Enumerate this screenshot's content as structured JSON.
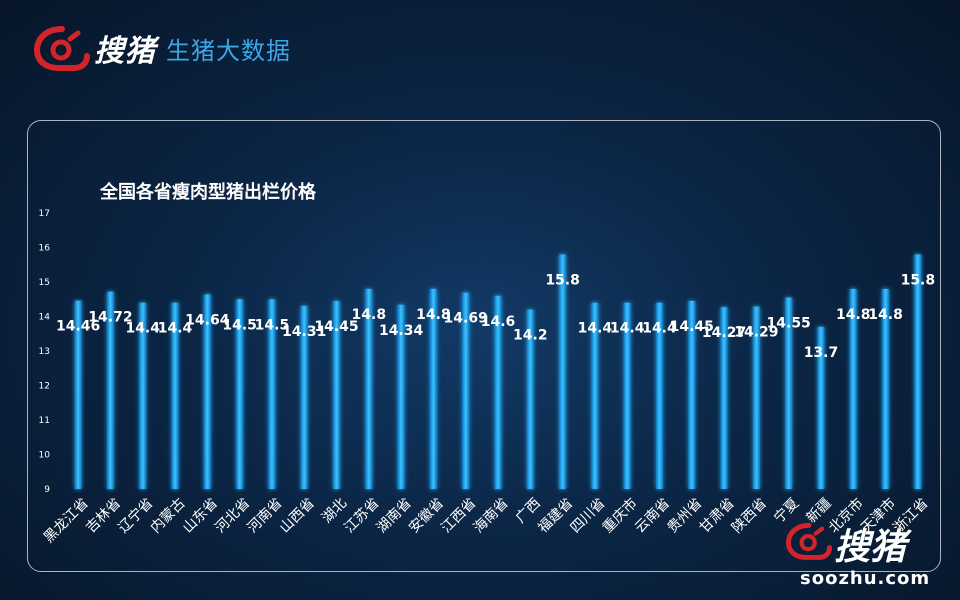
{
  "brand": {
    "name": "搜猪",
    "subtitle": "生猪大数据",
    "logo_icon": "pig-logo-icon"
  },
  "watermark": {
    "name": "搜猪",
    "url": "soozhu.com"
  },
  "colors": {
    "bar": "#1aa8f0",
    "bar_glow": "#0a6fb8",
    "background": "#0b2544",
    "text": "#ffffff"
  },
  "chart_data": {
    "type": "bar",
    "title": "全国各省瘦肉型猪出栏价格",
    "xlabel": "",
    "ylabel": "",
    "ylim": [
      9,
      17
    ],
    "yticks": [
      9,
      10,
      11,
      12,
      13,
      14,
      15,
      16,
      17
    ],
    "grid": false,
    "categories": [
      "黑龙江省",
      "吉林省",
      "辽宁省",
      "内蒙古",
      "山东省",
      "河北省",
      "河南省",
      "山西省",
      "湖北",
      "江苏省",
      "湖南省",
      "安徽省",
      "江西省",
      "海南省",
      "广西",
      "福建省",
      "四川省",
      "重庆市",
      "云南省",
      "贵州省",
      "甘肃省",
      "陕西省",
      "宁夏",
      "新疆",
      "北京市",
      "天津市",
      "浙江省"
    ],
    "values": [
      14.46,
      14.72,
      14.4,
      14.4,
      14.64,
      14.5,
      14.5,
      14.31,
      14.45,
      14.8,
      14.34,
      14.8,
      14.69,
      14.6,
      14.2,
      15.8,
      14.4,
      14.4,
      14.4,
      14.45,
      14.27,
      14.29,
      14.55,
      13.7,
      14.8,
      14.8,
      15.8
    ],
    "labels": [
      "14.46",
      "14.72",
      "14.4",
      "14.4",
      "14.64",
      "14.5",
      "14.5",
      "14.31",
      "14.45",
      "14.8",
      "14.34",
      "14.8",
      "14.69",
      "14.6",
      "14.2",
      "15.8",
      "14.4",
      "14.4",
      "14.4",
      "14.45",
      "14.27",
      "14.29",
      "14.55",
      "13.7",
      "14.8",
      "14.8",
      "15.8"
    ]
  }
}
